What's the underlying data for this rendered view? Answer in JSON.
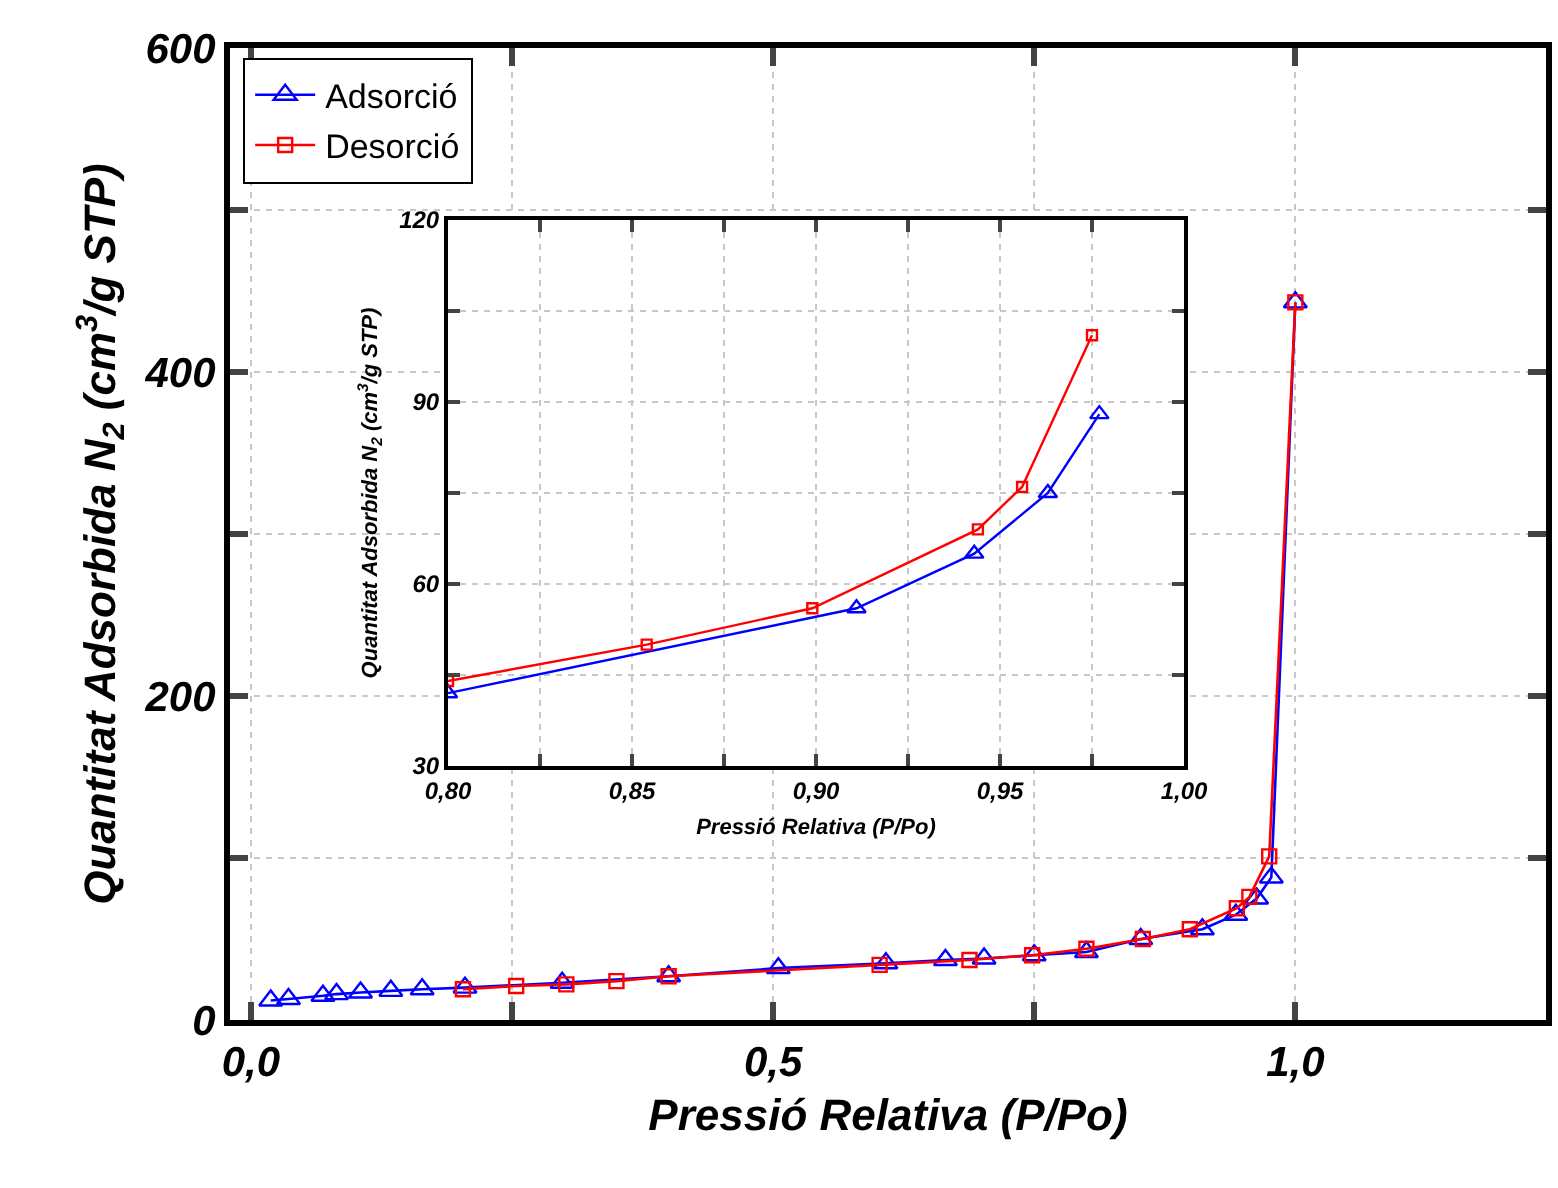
{
  "chart_data": [
    {
      "type": "line",
      "xlabel": "Pressió Relativa (P/Po)",
      "ylabel": "Quantitat Adsorbida N$_{2}$ (cm$^{3}$/g STP)",
      "xlim": [
        -0.02,
        1.24
      ],
      "ylim": [
        0,
        600
      ],
      "xticks": [
        {
          "value": 0,
          "label": "0,0"
        },
        {
          "value": 0.25,
          "label": null
        },
        {
          "value": 0.5,
          "label": "0,5"
        },
        {
          "value": 0.75,
          "label": null
        },
        {
          "value": 1,
          "label": "1,0"
        }
      ],
      "yticks": [
        0,
        {
          "value": 100,
          "label": null
        },
        200,
        {
          "value": 300,
          "label": null
        },
        400,
        {
          "value": 500,
          "label": null
        },
        600
      ],
      "grid": true,
      "legend": "top left",
      "series": [
        {
          "name": "Adsorció",
          "color": "#0000ff",
          "marker": "triangle",
          "x": [
            0.019,
            0.036,
            0.069,
            0.082,
            0.105,
            0.134,
            0.164,
            0.205,
            0.298,
            0.4,
            0.505,
            0.608,
            0.665,
            0.702,
            0.75,
            0.8,
            0.852,
            0.911,
            0.943,
            0.963,
            0.977,
            1.0
          ],
          "values": [
            12,
            13,
            15,
            16,
            17,
            18,
            19,
            20,
            23,
            27,
            32,
            35,
            37,
            38,
            40,
            42,
            50,
            56,
            65,
            75,
            88,
            443
          ]
        },
        {
          "name": "Desorció",
          "color": "#ff0000",
          "marker": "square",
          "x": [
            0.203,
            0.254,
            0.302,
            0.35,
            0.4,
            0.602,
            0.688,
            0.748,
            0.8,
            0.854,
            0.899,
            0.944,
            0.956,
            0.975,
            1.0
          ],
          "values": [
            19,
            21,
            22,
            24,
            27,
            34,
            37,
            40,
            44,
            50,
            56,
            69,
            76,
            101,
            443
          ]
        }
      ]
    },
    {
      "type": "line",
      "xlabel": "Pressió Relativa (P/Po)",
      "ylabel": "Quantitat Adsorbida N$_{2}$ (cm$^{3}$/g STP)",
      "xlim": [
        0.8,
        1.0
      ],
      "ylim": [
        30,
        120
      ],
      "xticks": [
        {
          "value": 0.8,
          "label": "0,80"
        },
        {
          "value": 0.825,
          "label": null
        },
        {
          "value": 0.85,
          "label": "0,85"
        },
        {
          "value": 0.875,
          "label": null
        },
        {
          "value": 0.9,
          "label": "0,90"
        },
        {
          "value": 0.925,
          "label": null
        },
        {
          "value": 0.95,
          "label": "0,95"
        },
        {
          "value": 0.975,
          "label": null
        },
        {
          "value": 1.0,
          "label": "1,00"
        }
      ],
      "yticks": [
        30,
        {
          "value": 45,
          "label": null
        },
        60,
        {
          "value": 75,
          "label": null
        },
        90,
        {
          "value": 105,
          "label": null
        },
        120
      ],
      "grid": true,
      "series": [
        {
          "color": "#0000ff",
          "marker": "triangle",
          "x": [
            0.8,
            0.911,
            0.943,
            0.963,
            0.977
          ],
          "values": [
            42,
            56,
            65,
            75,
            88
          ]
        },
        {
          "color": "#ff0000",
          "marker": "square",
          "x": [
            0.8,
            0.854,
            0.899,
            0.944,
            0.956,
            0.975
          ],
          "values": [
            44,
            50,
            56,
            69,
            76,
            101
          ]
        }
      ]
    }
  ]
}
